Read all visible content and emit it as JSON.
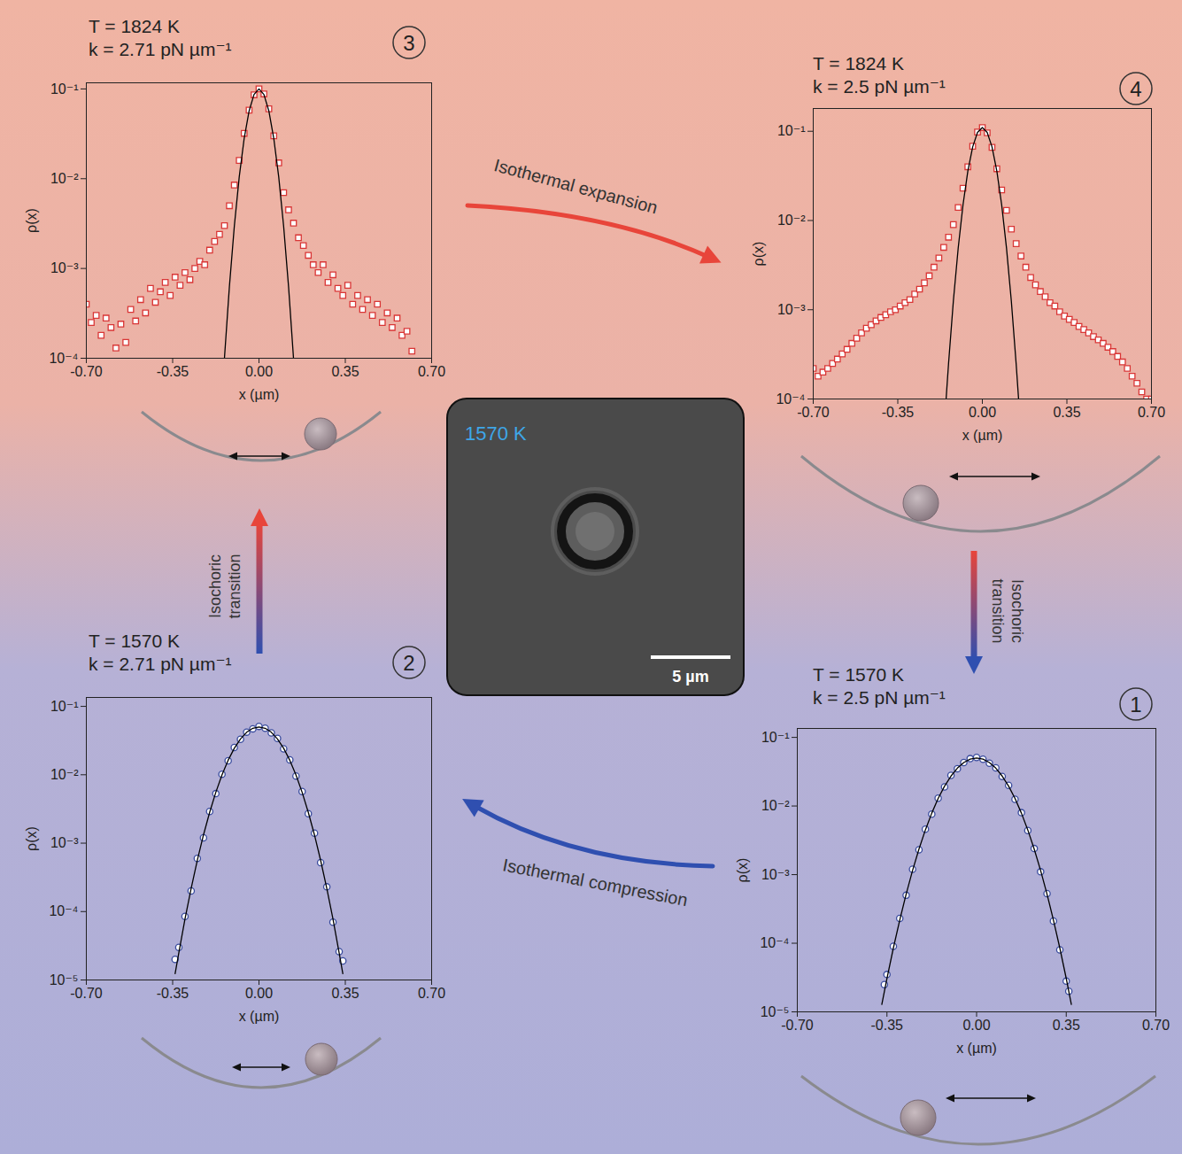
{
  "chart_data": [
    {
      "type": "scatter",
      "title": "T = 1570 K",
      "subtitle": "k = 2.5 pN µm⁻¹",
      "annotations": [
        "1"
      ],
      "xlabel": "x (µm)",
      "ylabel": "ρ(x)",
      "log": "y",
      "xlim": [
        -0.7,
        0.7
      ],
      "xticks": [
        {
          "value": -0.7,
          "label": "-0.70"
        },
        {
          "value": -0.35,
          "label": "-0.35"
        },
        {
          "value": 0,
          "label": "0.00"
        },
        {
          "value": 0.35,
          "label": "0.35"
        },
        {
          "value": 0.7,
          "label": "0.70"
        }
      ],
      "ylim": [
        1e-05,
        0.135
      ],
      "yticks": [
        {
          "value": 1e-05,
          "label": "10⁻⁵"
        },
        {
          "value": 0.0001,
          "label": "10⁻⁴"
        },
        {
          "value": 0.001,
          "label": "10⁻³"
        },
        {
          "value": 0.01,
          "label": "10⁻²"
        },
        {
          "value": 0.1,
          "label": "10⁻¹"
        }
      ],
      "series": [
        {
          "type": "scatter",
          "marker": "circle",
          "color": "#3a4c9e",
          "x": [
            -0.36,
            -0.35,
            -0.325,
            -0.3,
            -0.275,
            -0.25,
            -0.225,
            -0.2,
            -0.175,
            -0.15,
            -0.125,
            -0.1,
            -0.075,
            -0.05,
            -0.025,
            0,
            0.025,
            0.05,
            0.075,
            0.1,
            0.125,
            0.15,
            0.175,
            0.2,
            0.225,
            0.25,
            0.275,
            0.3,
            0.325,
            0.35,
            0.36
          ],
          "values": [
            2.5e-05,
            3.5e-05,
            9e-05,
            0.00023,
            0.0005,
            0.0012,
            0.0023,
            0.0046,
            0.0076,
            0.013,
            0.019,
            0.028,
            0.035,
            0.043,
            0.049,
            0.051,
            0.048,
            0.042,
            0.036,
            0.027,
            0.02,
            0.0125,
            0.008,
            0.0044,
            0.0024,
            0.0011,
            0.00053,
            0.00021,
            8e-05,
            2.8e-05,
            2e-05
          ]
        },
        {
          "type": "line",
          "color": "#000000",
          "x": [
            -0.37,
            -0.35,
            -0.325,
            -0.3,
            -0.275,
            -0.25,
            -0.225,
            -0.2,
            -0.175,
            -0.15,
            -0.125,
            -0.1,
            -0.075,
            -0.05,
            -0.025,
            0,
            0.025,
            0.05,
            0.075,
            0.1,
            0.125,
            0.15,
            0.175,
            0.2,
            0.225,
            0.25,
            0.275,
            0.3,
            0.325,
            0.35,
            0.37
          ],
          "values": [
            1.28e-05,
            3.07e-05,
            8.5e-05,
            0.000218,
            0.00052,
            0.00115,
            0.00235,
            0.00447,
            0.00787,
            0.0129,
            0.0195,
            0.0273,
            0.0356,
            0.043,
            0.0482,
            0.05,
            0.0482,
            0.043,
            0.0356,
            0.0273,
            0.0195,
            0.0129,
            0.00787,
            0.00447,
            0.00235,
            0.00115,
            0.00052,
            0.000218,
            8.5e-05,
            3.07e-05,
            1.28e-05
          ]
        }
      ]
    },
    {
      "type": "scatter",
      "title": "T = 1570 K",
      "subtitle": "k = 2.71 pN µm⁻¹",
      "annotations": [
        "2"
      ],
      "xlabel": "x (µm)",
      "ylabel": "ρ(x)",
      "log": "y",
      "xlim": [
        -0.7,
        0.7
      ],
      "xticks": [
        {
          "value": -0.7,
          "label": "-0.70"
        },
        {
          "value": -0.35,
          "label": "-0.35"
        },
        {
          "value": 0,
          "label": "0.00"
        },
        {
          "value": 0.35,
          "label": "0.35"
        },
        {
          "value": 0.7,
          "label": "0.70"
        }
      ],
      "ylim": [
        1e-05,
        0.135
      ],
      "yticks": [
        {
          "value": 1e-05,
          "label": "10⁻⁵"
        },
        {
          "value": 0.0001,
          "label": "10⁻⁴"
        },
        {
          "value": 0.001,
          "label": "10⁻³"
        },
        {
          "value": 0.01,
          "label": "10⁻²"
        },
        {
          "value": 0.1,
          "label": "10⁻¹"
        }
      ],
      "series": [
        {
          "type": "scatter",
          "marker": "circle",
          "color": "#3a4c9e",
          "x": [
            -0.34,
            -0.325,
            -0.3,
            -0.275,
            -0.25,
            -0.225,
            -0.2,
            -0.175,
            -0.15,
            -0.125,
            -0.1,
            -0.075,
            -0.05,
            -0.025,
            0,
            0.025,
            0.05,
            0.075,
            0.1,
            0.125,
            0.15,
            0.175,
            0.2,
            0.225,
            0.25,
            0.275,
            0.3,
            0.325,
            0.34
          ],
          "values": [
            2e-05,
            3e-05,
            8.5e-05,
            0.0002,
            0.0006,
            0.0012,
            0.0029,
            0.0053,
            0.0102,
            0.016,
            0.025,
            0.033,
            0.042,
            0.047,
            0.051,
            0.048,
            0.041,
            0.034,
            0.024,
            0.0165,
            0.0096,
            0.0057,
            0.0027,
            0.0014,
            0.00052,
            0.00023,
            7e-05,
            2.6e-05,
            1.9e-05
          ]
        },
        {
          "type": "line",
          "color": "#000000",
          "x": [
            -0.34,
            -0.325,
            -0.3,
            -0.275,
            -0.25,
            -0.225,
            -0.2,
            -0.175,
            -0.15,
            -0.125,
            -0.1,
            -0.075,
            -0.05,
            -0.025,
            0,
            0.025,
            0.05,
            0.075,
            0.1,
            0.125,
            0.15,
            0.175,
            0.2,
            0.225,
            0.25,
            0.275,
            0.3,
            0.325,
            0.34
          ],
          "values": [
            1.24e-05,
            2.5e-05,
            7.8e-05,
            0.000218,
            0.00056,
            0.00132,
            0.00282,
            0.00554,
            0.00993,
            0.0163,
            0.0244,
            0.0334,
            0.0418,
            0.0478,
            0.05,
            0.0478,
            0.0418,
            0.0334,
            0.0244,
            0.0163,
            0.00993,
            0.00554,
            0.00282,
            0.00132,
            0.00056,
            0.000218,
            7.8e-05,
            2.5e-05,
            1.24e-05
          ]
        }
      ]
    },
    {
      "type": "scatter",
      "title": "T = 1824 K",
      "subtitle": "k = 2.71 pN µm⁻¹",
      "annotations": [
        "3"
      ],
      "xlabel": "x (µm)",
      "ylabel": "ρ(x)",
      "log": "y",
      "xlim": [
        -0.7,
        0.7
      ],
      "xticks": [
        {
          "value": -0.7,
          "label": "-0.70"
        },
        {
          "value": -0.35,
          "label": "-0.35"
        },
        {
          "value": 0,
          "label": "0.00"
        },
        {
          "value": 0.35,
          "label": "0.35"
        },
        {
          "value": 0.7,
          "label": "0.70"
        }
      ],
      "ylim": [
        0.0001,
        0.117
      ],
      "yticks": [
        {
          "value": 0.0001,
          "label": "10⁻⁴"
        },
        {
          "value": 0.001,
          "label": "10⁻³"
        },
        {
          "value": 0.01,
          "label": "10⁻²"
        },
        {
          "value": 0.1,
          "label": "10⁻¹"
        }
      ],
      "series": [
        {
          "type": "scatter",
          "marker": "square",
          "color": "#d93636",
          "x": [
            -0.7,
            -0.68,
            -0.66,
            -0.64,
            -0.62,
            -0.6,
            -0.58,
            -0.56,
            -0.54,
            -0.52,
            -0.5,
            -0.48,
            -0.46,
            -0.44,
            -0.42,
            -0.4,
            -0.38,
            -0.36,
            -0.34,
            -0.32,
            -0.3,
            -0.28,
            -0.26,
            -0.24,
            -0.22,
            -0.2,
            -0.18,
            -0.16,
            -0.14,
            -0.12,
            -0.1,
            -0.08,
            -0.06,
            -0.04,
            -0.02,
            0,
            0.02,
            0.04,
            0.06,
            0.08,
            0.1,
            0.12,
            0.14,
            0.16,
            0.18,
            0.2,
            0.22,
            0.24,
            0.26,
            0.28,
            0.3,
            0.32,
            0.34,
            0.36,
            0.38,
            0.4,
            0.42,
            0.44,
            0.46,
            0.48,
            0.5,
            0.52,
            0.54,
            0.56,
            0.58,
            0.6,
            0.62
          ],
          "values": [
            0.0004,
            0.00025,
            0.0003,
            0.00018,
            0.00028,
            0.00022,
            0.00013,
            0.00024,
            0.00015,
            0.00035,
            0.00026,
            0.00045,
            0.00032,
            0.0006,
            0.00042,
            0.00055,
            0.0007,
            0.0005,
            0.0008,
            0.00065,
            0.0009,
            0.00075,
            0.001,
            0.0012,
            0.0011,
            0.0016,
            0.002,
            0.0024,
            0.003,
            0.005,
            0.0085,
            0.016,
            0.032,
            0.058,
            0.086,
            0.1,
            0.088,
            0.06,
            0.03,
            0.015,
            0.007,
            0.0045,
            0.0032,
            0.0022,
            0.0018,
            0.0014,
            0.0011,
            0.0009,
            0.0011,
            0.0007,
            0.00085,
            0.0006,
            0.0005,
            0.00065,
            0.0004,
            0.0005,
            0.00035,
            0.00045,
            0.0003,
            0.0004,
            0.00025,
            0.00032,
            0.00022,
            0.00028,
            0.00018,
            0.0002,
            0.00012
          ]
        },
        {
          "type": "line",
          "color": "#000000",
          "x": [
            -0.14,
            -0.12,
            -0.1,
            -0.08,
            -0.06,
            -0.04,
            -0.02,
            0,
            0.02,
            0.04,
            0.06,
            0.08,
            0.1,
            0.12,
            0.14
          ],
          "values": [
            0.0001,
            0.000624,
            0.00295,
            0.0105,
            0.0281,
            0.0569,
            0.0868,
            0.1,
            0.0868,
            0.0569,
            0.0281,
            0.0105,
            0.00295,
            0.000624,
            0.0001
          ]
        }
      ]
    },
    {
      "type": "scatter",
      "title": "T = 1824 K",
      "subtitle": "k = 2.5 pN µm⁻¹",
      "annotations": [
        "4"
      ],
      "xlabel": "x (µm)",
      "ylabel": "ρ(x)",
      "log": "y",
      "xlim": [
        -0.7,
        0.7
      ],
      "xticks": [
        {
          "value": -0.7,
          "label": "-0.70"
        },
        {
          "value": -0.35,
          "label": "-0.35"
        },
        {
          "value": 0,
          "label": "0.00"
        },
        {
          "value": 0.35,
          "label": "0.35"
        },
        {
          "value": 0.7,
          "label": "0.70"
        }
      ],
      "ylim": [
        0.0001,
        0.18
      ],
      "yticks": [
        {
          "value": 0.0001,
          "label": "10⁻⁴"
        },
        {
          "value": 0.001,
          "label": "10⁻³"
        },
        {
          "value": 0.01,
          "label": "10⁻²"
        },
        {
          "value": 0.1,
          "label": "10⁻¹"
        }
      ],
      "series": [
        {
          "type": "scatter",
          "marker": "square",
          "color": "#d93636",
          "x": [
            -0.7,
            -0.68,
            -0.66,
            -0.64,
            -0.62,
            -0.6,
            -0.58,
            -0.56,
            -0.54,
            -0.52,
            -0.5,
            -0.48,
            -0.46,
            -0.44,
            -0.42,
            -0.4,
            -0.38,
            -0.36,
            -0.34,
            -0.32,
            -0.3,
            -0.28,
            -0.26,
            -0.24,
            -0.22,
            -0.2,
            -0.18,
            -0.16,
            -0.14,
            -0.12,
            -0.1,
            -0.08,
            -0.06,
            -0.04,
            -0.02,
            0,
            0.02,
            0.04,
            0.06,
            0.08,
            0.1,
            0.12,
            0.14,
            0.16,
            0.18,
            0.2,
            0.22,
            0.24,
            0.26,
            0.28,
            0.3,
            0.32,
            0.34,
            0.36,
            0.38,
            0.4,
            0.42,
            0.44,
            0.46,
            0.48,
            0.5,
            0.52,
            0.54,
            0.56,
            0.58,
            0.6,
            0.62,
            0.64,
            0.66,
            0.68,
            0.7
          ],
          "values": [
            0.00022,
            0.00018,
            0.0002,
            0.00022,
            0.00025,
            0.00028,
            0.00032,
            0.00036,
            0.00042,
            0.00048,
            0.00055,
            0.00062,
            0.00068,
            0.00075,
            0.00082,
            0.00088,
            0.00095,
            0.001,
            0.0011,
            0.0012,
            0.0013,
            0.0015,
            0.0017,
            0.002,
            0.0024,
            0.003,
            0.0038,
            0.005,
            0.0065,
            0.009,
            0.014,
            0.023,
            0.04,
            0.068,
            0.098,
            0.11,
            0.096,
            0.066,
            0.038,
            0.022,
            0.013,
            0.008,
            0.0055,
            0.004,
            0.003,
            0.0023,
            0.0019,
            0.0016,
            0.0014,
            0.0012,
            0.0011,
            0.00095,
            0.00085,
            0.00078,
            0.00072,
            0.00065,
            0.0006,
            0.00055,
            0.0005,
            0.00046,
            0.00042,
            0.00038,
            0.00034,
            0.0003,
            0.00026,
            0.00022,
            0.00018,
            0.00015,
            0.00012,
            0.0001,
            0.0001
          ]
        },
        {
          "type": "line",
          "color": "#000000",
          "x": [
            -0.15,
            -0.14,
            -0.12,
            -0.1,
            -0.08,
            -0.06,
            -0.04,
            -0.02,
            0,
            0.02,
            0.04,
            0.06,
            0.08,
            0.1,
            0.12,
            0.14,
            0.15
          ],
          "values": [
            0.0001,
            0.000247,
            0.00125,
            0.0049,
            0.015,
            0.0359,
            0.0668,
            0.0971,
            0.11,
            0.0971,
            0.0668,
            0.0359,
            0.015,
            0.0049,
            0.00125,
            0.000247,
            0.0001
          ]
        }
      ]
    }
  ],
  "diagram": {
    "arrows": [
      {
        "from": "3",
        "to": "4",
        "label": "Isothermal expansion"
      },
      {
        "from": "4",
        "to": "1",
        "label": "Isochoric transition"
      },
      {
        "from": "1",
        "to": "2",
        "label": "Isothermal compression"
      },
      {
        "from": "2",
        "to": "3",
        "label": "Isochoric transition"
      }
    ],
    "image": {
      "label": "1570 K",
      "scale_bar": "5 µm"
    }
  }
}
